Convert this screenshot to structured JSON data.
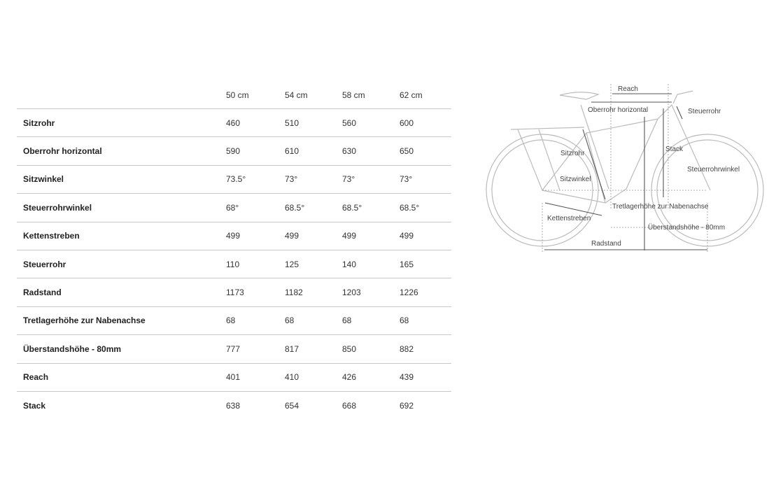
{
  "table": {
    "sizes": [
      "50 cm",
      "54 cm",
      "58 cm",
      "62 cm"
    ],
    "rows": [
      {
        "label": "Sitzrohr",
        "values": [
          "460",
          "510",
          "560",
          "600"
        ]
      },
      {
        "label": "Oberrohr horizontal",
        "values": [
          "590",
          "610",
          "630",
          "650"
        ]
      },
      {
        "label": "Sitzwinkel",
        "values": [
          "73.5°",
          "73°",
          "73°",
          "73°"
        ]
      },
      {
        "label": "Steuerrohrwinkel",
        "values": [
          "68°",
          "68.5°",
          "68.5°",
          "68.5°"
        ]
      },
      {
        "label": "Kettenstreben",
        "values": [
          "499",
          "499",
          "499",
          "499"
        ]
      },
      {
        "label": "Steuerrohr",
        "values": [
          "110",
          "125",
          "140",
          "165"
        ]
      },
      {
        "label": "Radstand",
        "values": [
          "1173",
          "1182",
          "1203",
          "1226"
        ]
      },
      {
        "label": "Tretlagerhöhe zur Nabenachse",
        "values": [
          "68",
          "68",
          "68",
          "68"
        ]
      },
      {
        "label": "Überstandshöhe - 80mm",
        "values": [
          "777",
          "817",
          "850",
          "882"
        ]
      },
      {
        "label": "Reach",
        "values": [
          "401",
          "410",
          "426",
          "439"
        ]
      },
      {
        "label": "Stack",
        "values": [
          "638",
          "654",
          "668",
          "692"
        ]
      }
    ]
  },
  "diagram": {
    "labels": {
      "reach": "Reach",
      "oberrohr": "Oberrohr horizontal",
      "steuerrohr": "Steuerrohr",
      "stack": "Stack",
      "sitzrohr": "Sitzrohr",
      "steuerrohrwinkel": "Steuerrohrwinkel",
      "sitzwinkel": "Sitzwinkel",
      "tretlager": "Tretlagerhöhe zur Nabenachse",
      "kettenstreben": "Kettenstreben",
      "ueberstand": "Überstandshöhe - 80mm",
      "radstand": "Radstand"
    }
  }
}
